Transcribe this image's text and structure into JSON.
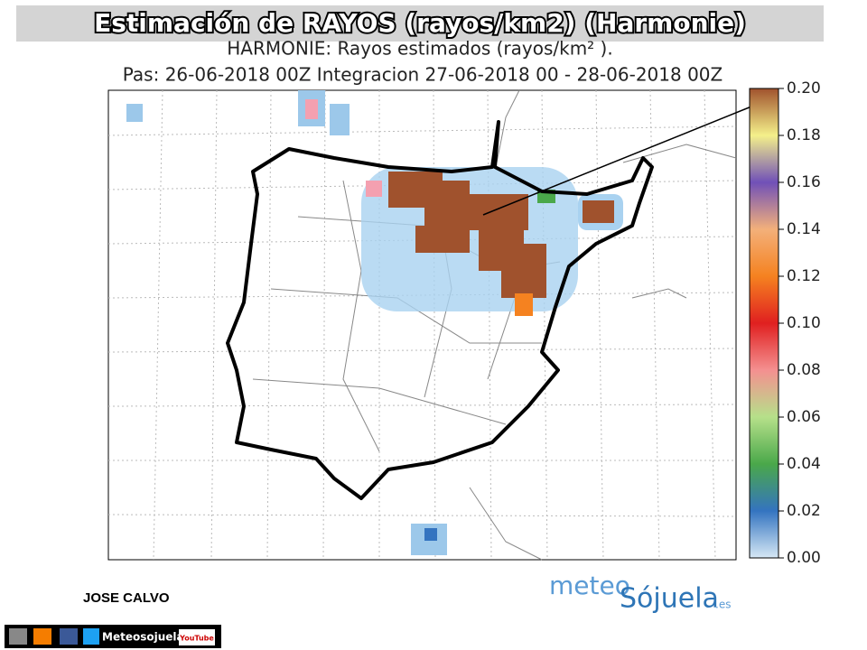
{
  "header": {
    "title": "Estimación de RAYOS (rayos/km2) (Harmonie)"
  },
  "map": {
    "title": "HARMONIE: Rayos estimados  (rayos/km² ).",
    "subtitle": "Pas: 26-06-2018 00Z Integracion 27-06-2018 00 - 28-06-2018 00Z"
  },
  "colorbar": {
    "lim": [
      0,
      0.2
    ],
    "ticks": [
      {
        "value": 0,
        "label": "0.00"
      },
      {
        "value": 0.02,
        "label": "0.02"
      },
      {
        "value": 0.04,
        "label": "0.04"
      },
      {
        "value": 0.06,
        "label": "0.06"
      },
      {
        "value": 0.08,
        "label": "0.08"
      },
      {
        "value": 0.1,
        "label": "0.10"
      },
      {
        "value": 0.12,
        "label": "0.12"
      },
      {
        "value": 0.14,
        "label": "0.14"
      },
      {
        "value": 0.16,
        "label": "0.16"
      },
      {
        "value": 0.18,
        "label": "0.18"
      },
      {
        "value": 0.2,
        "label": "0.20"
      }
    ]
  },
  "author": "JOSE CALVO",
  "logo": {
    "part1": "meteo",
    "part2": "Sójuela",
    "suffix": ".es"
  },
  "footer": {
    "brand": "Meteosojuela",
    "youtube": "YouTube"
  }
}
